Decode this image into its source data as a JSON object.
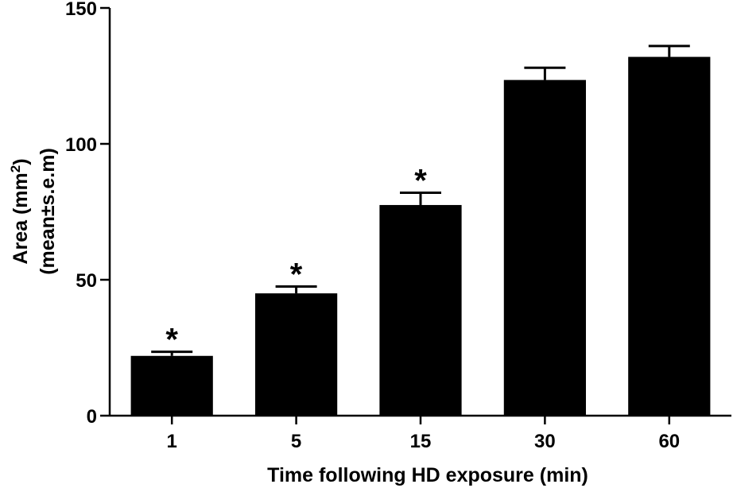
{
  "chart_data": {
    "type": "bar",
    "categories": [
      "1",
      "5",
      "15",
      "30",
      "60"
    ],
    "values": [
      22,
      45,
      77.5,
      123.5,
      132
    ],
    "errors": [
      1.5,
      2.5,
      4.5,
      4.5,
      4
    ],
    "significance": [
      "*",
      "*",
      "*",
      "",
      ""
    ],
    "xlabel": "Time following HD exposure (min)",
    "ylabel_line1": "Area (mm",
    "ylabel_sup": "2",
    "ylabel_line1_end": ")",
    "ylabel_line2": "(mean±s.e.m)",
    "ylim": [
      0,
      150
    ],
    "yticks": [
      0,
      50,
      100,
      150
    ],
    "bar_color": "#000000",
    "grid": false,
    "legend": "none"
  }
}
